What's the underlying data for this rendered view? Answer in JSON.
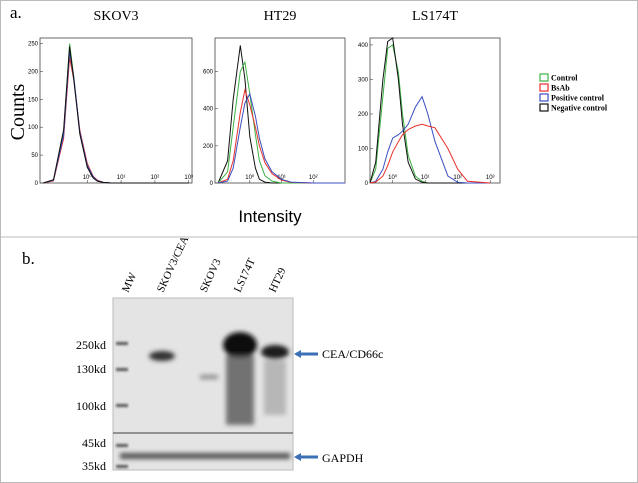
{
  "panel_a": {
    "label": "a.",
    "y_label": "Counts",
    "x_label": "Intensity",
    "legend": [
      {
        "name": "Control",
        "color": "#3cb043"
      },
      {
        "name": "BsAb",
        "color": "#e8302a"
      },
      {
        "name": "Positive control",
        "color": "#3a4fc0"
      },
      {
        "name": "Negative control",
        "color": "#111111"
      }
    ]
  },
  "chart_data": [
    {
      "type": "line",
      "title": "SKOV3",
      "log_x": true,
      "xlim": [
        0.04,
        1250
      ],
      "ylim": [
        0,
        260
      ],
      "xticks": [
        {
          "value": 1,
          "label": "10⁰"
        },
        {
          "value": 10,
          "label": "10¹"
        },
        {
          "value": 100,
          "label": "10²"
        },
        {
          "value": 1000,
          "label": "10³"
        }
      ],
      "yticks": [
        0,
        50,
        100,
        150,
        200,
        250
      ],
      "x": [
        0.05,
        0.1,
        0.2,
        0.3,
        0.4,
        0.6,
        1,
        1.5,
        2,
        3,
        5,
        10,
        100,
        1000
      ],
      "series": [
        {
          "color": "#3cb043",
          "values": [
            0,
            5,
            90,
            250,
            190,
            90,
            30,
            10,
            4,
            1,
            0,
            0,
            0,
            0
          ]
        },
        {
          "color": "#e8302a",
          "values": [
            0,
            4,
            80,
            225,
            185,
            95,
            35,
            12,
            5,
            1,
            0,
            0,
            0,
            0
          ]
        },
        {
          "color": "#3a4fc0",
          "values": [
            0,
            5,
            85,
            235,
            190,
            92,
            32,
            11,
            4,
            1,
            0,
            0,
            0,
            0
          ]
        },
        {
          "color": "#111111",
          "values": [
            0,
            6,
            95,
            245,
            185,
            88,
            28,
            9,
            3,
            1,
            0,
            0,
            0,
            0
          ]
        }
      ]
    },
    {
      "type": "line",
      "title": "HT29",
      "log_x": true,
      "xlim": [
        0.08,
        1000
      ],
      "ylim": [
        0,
        780
      ],
      "xticks": [
        {
          "value": 1,
          "label": "10⁰"
        },
        {
          "value": 10,
          "label": "10¹"
        },
        {
          "value": 100,
          "label": "10²"
        }
      ],
      "yticks": [
        0,
        200,
        400,
        600
      ],
      "x": [
        0.1,
        0.2,
        0.3,
        0.5,
        0.7,
        1,
        1.5,
        2,
        3,
        5,
        10,
        20,
        100,
        1000
      ],
      "series": [
        {
          "color": "#111111",
          "values": [
            0,
            120,
            450,
            740,
            560,
            250,
            80,
            20,
            5,
            0,
            0,
            0,
            0,
            0
          ]
        },
        {
          "color": "#3cb043",
          "values": [
            0,
            60,
            300,
            600,
            650,
            480,
            260,
            120,
            40,
            10,
            0,
            0,
            0,
            0
          ]
        },
        {
          "color": "#e8302a",
          "values": [
            0,
            20,
            120,
            380,
            500,
            420,
            300,
            200,
            110,
            50,
            15,
            3,
            0,
            0
          ]
        },
        {
          "color": "#3a4fc0",
          "values": [
            0,
            10,
            80,
            300,
            430,
            480,
            360,
            240,
            130,
            60,
            20,
            5,
            0,
            0
          ]
        }
      ]
    },
    {
      "type": "line",
      "title": "LS174T",
      "log_x": true,
      "xlim": [
        0.2,
        2000
      ],
      "ylim": [
        0,
        420
      ],
      "xticks": [
        {
          "value": 1,
          "label": "10⁰"
        },
        {
          "value": 10,
          "label": "10¹"
        },
        {
          "value": 100,
          "label": "10²"
        },
        {
          "value": 1000,
          "label": "10³"
        }
      ],
      "yticks": [
        0,
        100,
        200,
        300,
        400
      ],
      "x": [
        0.2,
        0.3,
        0.5,
        0.7,
        1,
        1.5,
        2,
        3,
        5,
        8,
        12,
        20,
        50,
        100,
        200,
        1000
      ],
      "series": [
        {
          "color": "#3cb043",
          "values": [
            0,
            40,
            250,
            390,
            400,
            320,
            200,
            80,
            20,
            5,
            0,
            0,
            0,
            0,
            0,
            0
          ]
        },
        {
          "color": "#111111",
          "values": [
            0,
            60,
            300,
            410,
            420,
            300,
            170,
            60,
            12,
            2,
            0,
            0,
            0,
            0,
            0,
            0
          ]
        },
        {
          "color": "#3a4fc0",
          "values": [
            0,
            5,
            40,
            90,
            130,
            140,
            150,
            170,
            220,
            250,
            200,
            120,
            20,
            2,
            0,
            0
          ]
        },
        {
          "color": "#e8302a",
          "values": [
            0,
            3,
            20,
            50,
            90,
            120,
            140,
            155,
            165,
            170,
            165,
            160,
            100,
            40,
            5,
            0
          ]
        }
      ]
    }
  ],
  "panel_b": {
    "label": "b.",
    "lanes": [
      "MW",
      "SKOV3/CEA",
      "SKOV3",
      "LS174T",
      "HT29"
    ],
    "sizes": [
      "250kd",
      "130kd",
      "100kd",
      "45kd",
      "35kd"
    ],
    "bands": [
      "CEA/CD66c",
      "GAPDH"
    ]
  }
}
